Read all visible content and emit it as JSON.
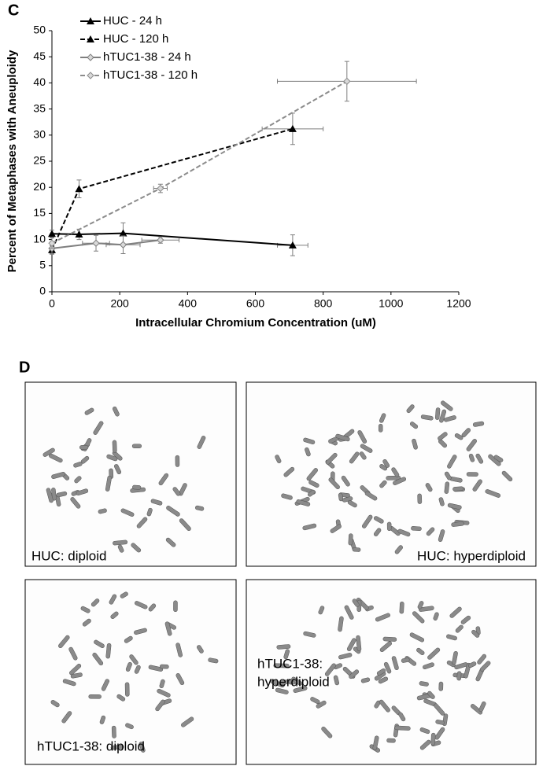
{
  "chart_data": {
    "type": "line",
    "panel_label": "C",
    "xlabel": "Intracellular Chromium Concentration (uM)",
    "ylabel": "Percent of Metaphases with Aneuploidy",
    "xlim": [
      0,
      1200
    ],
    "xticks": [
      0,
      200,
      400,
      600,
      800,
      1000,
      1200
    ],
    "ylim": [
      0,
      50
    ],
    "yticks": [
      0,
      5,
      10,
      15,
      20,
      25,
      30,
      35,
      40,
      45,
      50
    ],
    "grid": false,
    "legend": "upper left",
    "series": [
      {
        "name": "HUC - 24 h",
        "color": "#000000",
        "marker": "triangle",
        "dash": false,
        "x": [
          0,
          80,
          210,
          710
        ],
        "values": [
          11.1,
          11.0,
          11.2,
          8.9
        ],
        "yerr": [
          0.7,
          1,
          2,
          2
        ],
        "xerr": [
          null,
          null,
          null,
          45
        ]
      },
      {
        "name": "HUC - 120 h",
        "color": "#000000",
        "marker": "triangle",
        "dash": true,
        "x": [
          0,
          80,
          710
        ],
        "values": [
          8.0,
          19.7,
          31.2
        ],
        "yerr": [
          0.8,
          1.7,
          3
        ],
        "xerr": [
          null,
          null,
          90
        ]
      },
      {
        "name": "hTUC1-38 - 24 h",
        "color": "#7f7f7f",
        "marker": "diamond",
        "dash": false,
        "x": [
          0,
          130,
          210,
          320
        ],
        "values": [
          8.3,
          9.3,
          9.0,
          9.9
        ],
        "yerr": [
          1,
          1.5,
          1.7,
          0.6
        ],
        "xerr": [
          null,
          40,
          50,
          55
        ]
      },
      {
        "name": "hTUC1-38 - 120 h",
        "color": "#8c8c8c",
        "marker": "diamond",
        "dash": true,
        "x": [
          0,
          320,
          870
        ],
        "values": [
          9.3,
          19.8,
          40.3
        ],
        "yerr": [
          1,
          0.8,
          3.8
        ],
        "xerr": [
          null,
          20,
          205
        ]
      }
    ]
  },
  "figure_panel": {
    "label": "D",
    "images": [
      {
        "caption": [
          "HUC: diploid"
        ]
      },
      {
        "caption": [
          "HUC: hyperdiploid"
        ]
      },
      {
        "caption": [
          "hTUC1-38: diploid"
        ]
      },
      {
        "caption": [
          "hTUC1-38:",
          "hyperdiploid"
        ]
      }
    ]
  }
}
